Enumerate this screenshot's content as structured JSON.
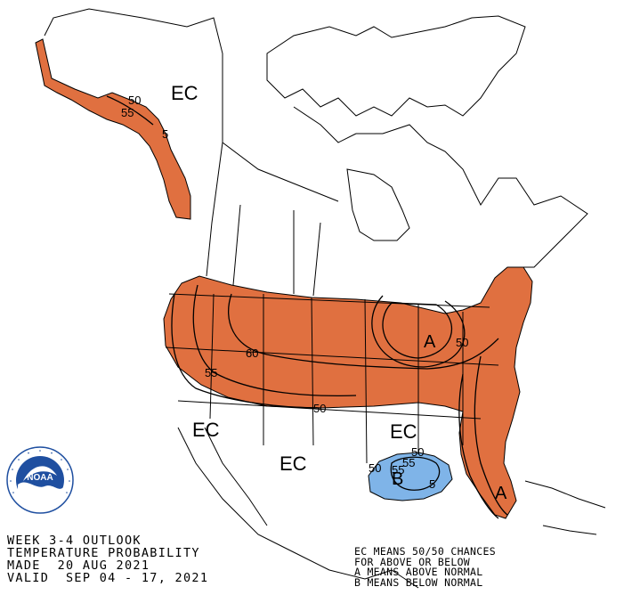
{
  "colors": {
    "above_fill": "#e07040",
    "below_fill": "#7fb4e8",
    "outline": "#000000",
    "background": "#ffffff",
    "logo_blue": "#1f4fa0"
  },
  "map_labels": {
    "ec_alaska": "EC",
    "ec_southwest": "EC",
    "ec_texas": "EC",
    "ec_southeast": "EC"
  },
  "regions": [
    {
      "category": "Above",
      "letter": "A",
      "color": "#e07040",
      "max_probability": 60
    },
    {
      "category": "Below",
      "letter": "B",
      "color": "#7fb4e8",
      "max_probability": 55
    }
  ],
  "contour_labels": [
    "50",
    "55",
    "5",
    "60",
    "55",
    "50",
    "50",
    "50",
    "55",
    "5",
    "50",
    "55"
  ],
  "region_letters": {
    "above_great_lakes": "A",
    "above_florida": "A",
    "below_gulf": "B"
  },
  "caption_left": [
    "WEEK 3-4 OUTLOOK",
    "TEMPERATURE PROBABILITY",
    "MADE  20 AUG 2021",
    "VALID  SEP 04 - 17, 2021"
  ],
  "caption_right": [
    "EC MEANS 50/50 CHANCES",
    "FOR ABOVE OR BELOW",
    "A MEANS ABOVE NORMAL",
    "B MEANS BELOW NORMAL"
  ],
  "logo": {
    "text": "NOAA",
    "ring_text": "NATIONAL OCEANIC AND ATMOSPHERIC ADMINISTRATION · U.S. DEPARTMENT OF COMMERCE"
  }
}
